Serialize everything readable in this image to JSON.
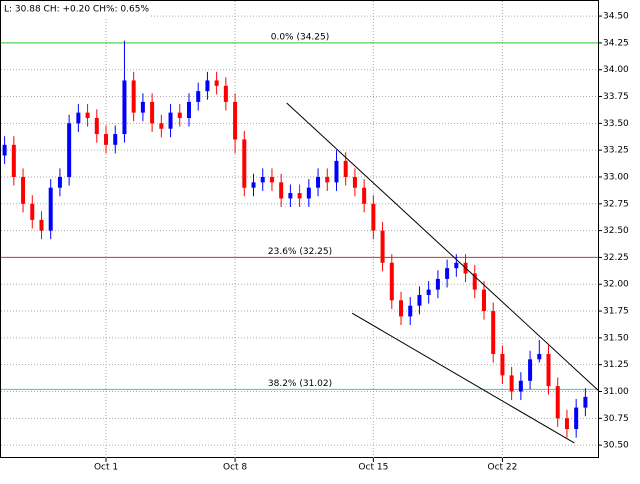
{
  "chart_data": {
    "type": "candlestick",
    "title": "L: 30.88 CH: +0.20 CH%: 0.65%",
    "categories": [
      null,
      null,
      null,
      null,
      null,
      null,
      null,
      null,
      null,
      null,
      null,
      "Oct 1",
      null,
      null,
      null,
      null,
      null,
      null,
      null,
      null,
      null,
      null,
      null,
      null,
      null,
      "Oct 8",
      null,
      null,
      null,
      null,
      null,
      null,
      null,
      null,
      null,
      null,
      null,
      null,
      null,
      null,
      "Oct 15",
      null,
      null,
      null,
      null,
      null,
      null,
      null,
      null,
      null,
      null,
      null,
      null,
      null,
      "Oct 22",
      null,
      null,
      null,
      null,
      null,
      null,
      null,
      null,
      null
    ],
    "open": [
      33.2,
      33.3,
      33.0,
      32.75,
      32.6,
      32.5,
      32.9,
      33.0,
      33.5,
      33.6,
      33.55,
      33.4,
      33.3,
      33.4,
      33.9,
      33.6,
      33.7,
      33.5,
      33.45,
      33.6,
      33.55,
      33.7,
      33.8,
      33.9,
      33.85,
      33.7,
      33.35,
      32.9,
      32.95,
      33.0,
      32.95,
      32.8,
      32.85,
      32.8,
      32.9,
      33.0,
      32.95,
      33.15,
      33.0,
      32.9,
      32.75,
      32.5,
      32.2,
      31.85,
      31.7,
      31.8,
      31.9,
      31.95,
      32.05,
      32.15,
      32.2,
      32.1,
      31.95,
      31.75,
      31.35,
      31.15,
      31.0,
      31.1,
      31.3,
      31.35,
      31.05,
      30.75,
      30.65,
      30.85
    ],
    "high": [
      33.38,
      33.38,
      33.08,
      32.83,
      32.68,
      32.98,
      33.08,
      33.58,
      33.68,
      33.68,
      33.63,
      33.48,
      33.48,
      34.27,
      33.98,
      33.78,
      33.78,
      33.58,
      33.68,
      33.68,
      33.78,
      33.88,
      33.98,
      33.98,
      33.93,
      33.78,
      33.43,
      33.03,
      33.08,
      33.08,
      33.03,
      32.93,
      32.93,
      32.98,
      33.08,
      33.08,
      33.25,
      33.23,
      33.08,
      32.98,
      32.83,
      32.58,
      32.28,
      31.93,
      31.88,
      31.98,
      32.03,
      32.13,
      32.23,
      32.28,
      32.28,
      32.18,
      32.03,
      31.83,
      31.43,
      31.23,
      31.18,
      31.38,
      31.48,
      31.43,
      31.13,
      30.83,
      30.93,
      31.03
    ],
    "low": [
      33.12,
      32.92,
      32.67,
      32.52,
      32.42,
      32.42,
      32.82,
      32.92,
      33.42,
      33.47,
      33.32,
      33.22,
      33.22,
      33.32,
      33.52,
      33.52,
      33.42,
      33.37,
      33.37,
      33.47,
      33.47,
      33.62,
      33.72,
      33.77,
      33.62,
      33.22,
      32.82,
      32.82,
      32.87,
      32.87,
      32.72,
      32.72,
      32.72,
      32.72,
      32.82,
      32.87,
      32.87,
      32.92,
      32.82,
      32.67,
      32.42,
      32.12,
      31.77,
      31.62,
      31.62,
      31.72,
      31.82,
      31.87,
      31.97,
      32.07,
      32.02,
      31.87,
      31.67,
      31.27,
      31.07,
      30.92,
      30.92,
      31.02,
      31.27,
      30.97,
      30.67,
      30.57,
      30.57,
      30.77
    ],
    "close": [
      33.3,
      33.0,
      32.75,
      32.6,
      32.5,
      32.9,
      33.0,
      33.5,
      33.6,
      33.55,
      33.4,
      33.3,
      33.4,
      33.9,
      33.6,
      33.7,
      33.5,
      33.45,
      33.6,
      33.55,
      33.7,
      33.8,
      33.9,
      33.85,
      33.7,
      33.35,
      32.9,
      32.95,
      33.0,
      32.95,
      32.8,
      32.85,
      32.8,
      32.9,
      33.0,
      32.95,
      33.15,
      33.0,
      32.9,
      32.75,
      32.5,
      32.2,
      31.85,
      31.7,
      31.8,
      31.9,
      31.95,
      32.05,
      32.15,
      32.2,
      32.1,
      31.95,
      31.75,
      31.35,
      31.15,
      31.0,
      31.1,
      31.3,
      31.35,
      31.05,
      30.75,
      30.65,
      30.85,
      30.95
    ],
    "up_color": "#0000ff",
    "down_color": "#ff0000",
    "levels": [
      {
        "label": "0.0% (34.25)",
        "value": 34.25,
        "color": "#33cc33"
      },
      {
        "label": "23.6% (32.25)",
        "value": 32.25,
        "color": "#e03030"
      },
      {
        "label": "38.2% (31.02)",
        "value": 31.02,
        "color": "#33cccc"
      }
    ],
    "trendlines": [
      {
        "x": [
          30.6,
          64.4
        ],
        "y": [
          33.69,
          31.01
        ]
      },
      {
        "x": [
          37.7,
          61.8
        ],
        "y": [
          31.73,
          30.52
        ]
      }
    ],
    "ylim": [
      30.38,
      34.65
    ],
    "yticks": [
      {
        "value": 30.5,
        "label": "30.50"
      },
      30.75,
      {
        "value": 31,
        "label": "31.00"
      },
      31.25,
      {
        "value": 31.5,
        "label": "31.50"
      },
      31.75,
      {
        "value": 32,
        "label": "32.00"
      },
      32.25,
      {
        "value": 32.5,
        "label": "32.50"
      },
      32.75,
      {
        "value": 33,
        "label": "33.00"
      },
      33.25,
      {
        "value": 33.5,
        "label": "33.50"
      },
      33.75,
      {
        "value": 34,
        "label": "34.00"
      },
      34.25,
      {
        "value": 34.5,
        "label": "34.50"
      }
    ],
    "grid": true
  }
}
